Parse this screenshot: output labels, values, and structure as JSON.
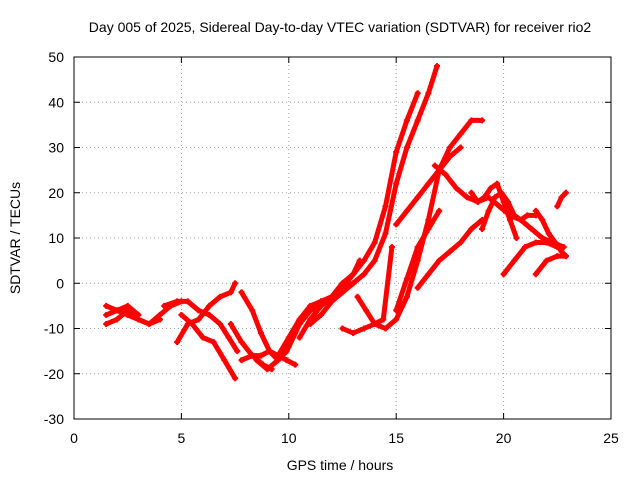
{
  "chart_data": {
    "type": "line",
    "title": "Day 005 of 2025, Sidereal Day-to-day VTEC variation (SDTVAR) for receiver rio2",
    "xlabel": "GPS time / hours",
    "ylabel": "SDTVAR / TECUs",
    "xlim": [
      0,
      25
    ],
    "ylim": [
      -30,
      50
    ],
    "xticks": [
      "0",
      "5",
      "10",
      "15",
      "20",
      "25"
    ],
    "yticks": [
      "-30",
      "-20",
      "-10",
      "0",
      "10",
      "20",
      "30",
      "40",
      "50"
    ],
    "grid": true,
    "legend": "none",
    "color": "#ff0000",
    "series": [
      {
        "x": [
          1.5,
          2.0,
          2.5,
          3.0,
          3.5,
          4.0,
          4.5,
          5.0
        ],
        "y": [
          -7,
          -6,
          -7,
          -8,
          -9,
          -7,
          -5,
          -4
        ]
      },
      {
        "x": [
          1.5,
          2.0,
          2.5,
          3.0,
          3.5,
          4.0
        ],
        "y": [
          -9,
          -8,
          -6,
          -8,
          -9,
          -8
        ]
      },
      {
        "x": [
          1.5,
          2.0,
          2.5,
          3.0
        ],
        "y": [
          -5,
          -6,
          -5,
          -7
        ]
      },
      {
        "x": [
          4.2,
          4.8,
          5.3,
          5.8,
          6.3,
          6.8,
          7.2,
          7.6
        ],
        "y": [
          -5,
          -4,
          -4,
          -6,
          -7,
          -9,
          -12,
          -15
        ]
      },
      {
        "x": [
          5.0,
          5.5,
          6.0,
          6.5,
          7.0,
          7.5
        ],
        "y": [
          -7,
          -9,
          -12,
          -13,
          -17,
          -21
        ]
      },
      {
        "x": [
          4.8,
          5.3,
          5.8,
          6.3,
          6.8,
          7.3,
          7.5
        ],
        "y": [
          -13,
          -9,
          -8,
          -5,
          -3,
          -2,
          0
        ]
      },
      {
        "x": [
          7.8,
          8.3,
          8.7,
          9.1,
          9.5,
          9.9,
          10.3,
          10.7
        ],
        "y": [
          -2,
          -6,
          -11,
          -15,
          -17,
          -15,
          -11,
          -7
        ]
      },
      {
        "x": [
          7.3,
          7.8,
          8.3,
          8.8,
          9.2
        ],
        "y": [
          -9,
          -13,
          -16,
          -18,
          -19
        ]
      },
      {
        "x": [
          7.8,
          8.3,
          8.7,
          9.1,
          9.5,
          9.9,
          10.3
        ],
        "y": [
          -17,
          -16,
          -16,
          -15,
          -16,
          -17,
          -18
        ]
      },
      {
        "x": [
          8.5,
          9.0,
          9.5,
          10.0,
          10.5,
          11.0,
          11.5,
          12.0,
          12.5
        ],
        "y": [
          -17,
          -19,
          -17,
          -13,
          -9,
          -6,
          -5,
          -3,
          0
        ]
      },
      {
        "x": [
          9.5,
          10.0,
          10.5,
          11.0,
          11.5,
          12.0,
          12.5,
          13.0,
          13.3
        ],
        "y": [
          -16,
          -12,
          -8,
          -5,
          -4,
          -3,
          -1,
          2,
          5
        ]
      },
      {
        "x": [
          10.0,
          10.5,
          11.0,
          11.5,
          12.0,
          12.5,
          13.0,
          13.5,
          14.0,
          14.5,
          15.0,
          15.5,
          16.0,
          16.5,
          16.9
        ],
        "y": [
          -14,
          -9,
          -6,
          -4,
          -3,
          -1,
          0,
          2,
          5,
          11,
          22,
          30,
          36,
          42,
          48
        ]
      },
      {
        "x": [
          10.5,
          11.0,
          11.5,
          12.0,
          12.5,
          13.0,
          13.5,
          14.0,
          14.5,
          15.0,
          15.5,
          16.0
        ],
        "y": [
          -12,
          -8,
          -5,
          -3,
          0,
          2,
          5,
          9,
          17,
          29,
          36,
          42
        ]
      },
      {
        "x": [
          11.0,
          11.5,
          12.0,
          12.5,
          13.0
        ],
        "y": [
          -9,
          -7,
          -4,
          -2,
          0
        ]
      },
      {
        "x": [
          12.5,
          13.0,
          13.5,
          14.0,
          14.5,
          15.0,
          15.5,
          16.0,
          16.5,
          17.0,
          17.5,
          18.0,
          18.5,
          19.0
        ],
        "y": [
          -10,
          -11,
          -10,
          -9,
          -10,
          -8,
          -3,
          5,
          14,
          25,
          30,
          33,
          36,
          36
        ]
      },
      {
        "x": [
          13.2,
          13.6,
          14.0,
          14.4,
          14.8
        ],
        "y": [
          -3,
          -6,
          -9,
          -8,
          8
        ]
      },
      {
        "x": [
          15.0,
          15.5,
          16.0,
          16.5,
          17.0,
          17.5,
          18.0
        ],
        "y": [
          13,
          16,
          19,
          22,
          25,
          28,
          30
        ]
      },
      {
        "x": [
          15.0,
          15.5,
          16.0,
          16.5,
          17.0
        ],
        "y": [
          -6,
          1,
          8,
          12,
          16
        ]
      },
      {
        "x": [
          16.0,
          16.5,
          17.0,
          17.5,
          18.0,
          18.5,
          19.0
        ],
        "y": [
          -1,
          2,
          5,
          7,
          9,
          12,
          14
        ]
      },
      {
        "x": [
          16.8,
          17.3,
          17.8,
          18.3,
          18.8,
          19.3,
          19.8,
          20.3,
          20.8,
          21.3,
          21.8,
          22.3,
          22.8
        ],
        "y": [
          26,
          24,
          21,
          19,
          18,
          19,
          17,
          15,
          14,
          12,
          10,
          9,
          8
        ]
      },
      {
        "x": [
          18.5,
          18.8,
          19.1,
          19.4,
          19.7,
          20.0,
          20.3,
          20.6
        ],
        "y": [
          20,
          18,
          19,
          21,
          22,
          18,
          14,
          10
        ]
      },
      {
        "x": [
          19.0,
          19.3,
          19.6,
          19.9,
          20.2,
          20.5,
          20.8,
          21.1,
          21.5
        ],
        "y": [
          12,
          16,
          19,
          20,
          18,
          15,
          14,
          15,
          15
        ]
      },
      {
        "x": [
          20.0,
          20.5,
          21.0,
          21.5,
          22.0,
          22.5
        ],
        "y": [
          2,
          5,
          8,
          9,
          9,
          8
        ]
      },
      {
        "x": [
          21.5,
          21.8,
          22.1,
          22.4,
          22.7,
          22.9
        ],
        "y": [
          16,
          14,
          11,
          9,
          7,
          6
        ]
      },
      {
        "x": [
          21.5,
          22.0,
          22.5,
          22.9
        ],
        "y": [
          2,
          5,
          6,
          6
        ]
      },
      {
        "x": [
          22.5,
          22.7,
          22.9
        ],
        "y": [
          17,
          19,
          20
        ]
      }
    ]
  }
}
